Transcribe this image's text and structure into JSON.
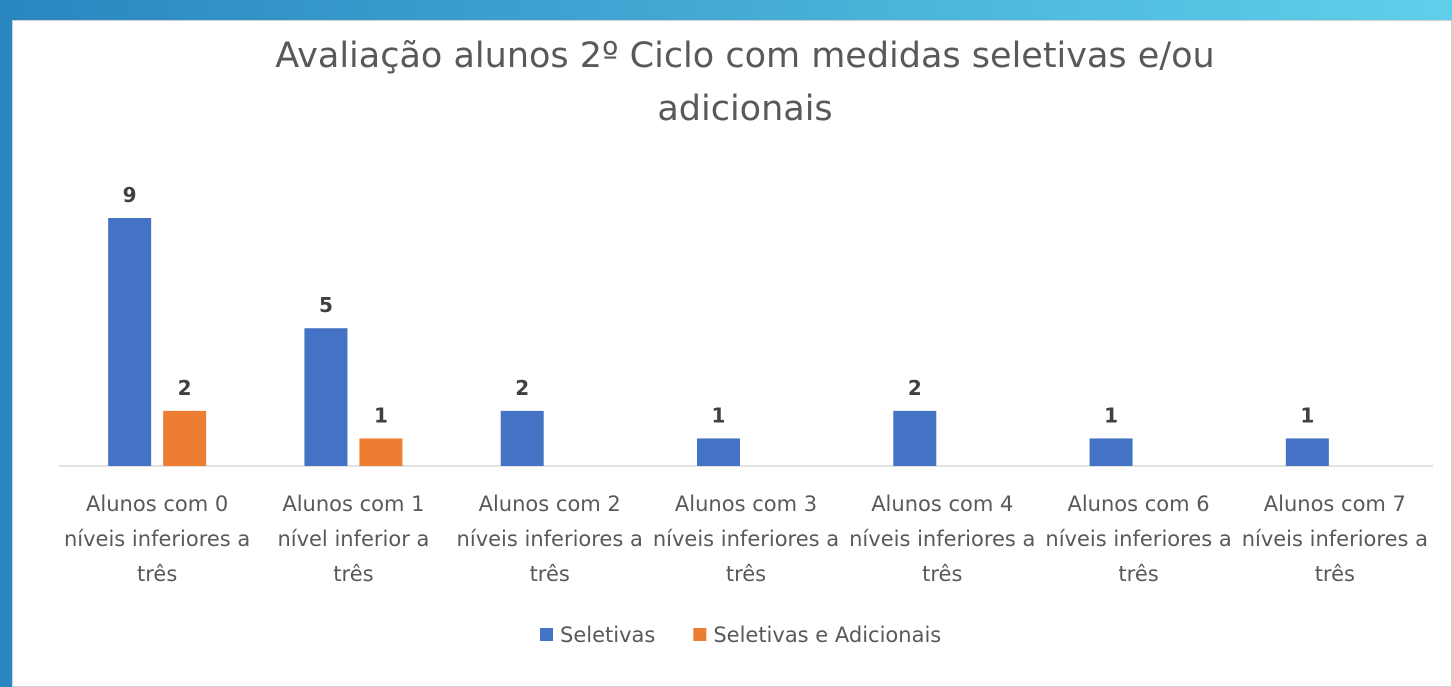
{
  "chart_data": {
    "type": "bar",
    "title": "Avaliação alunos 2º Ciclo com medidas seletivas e/ou adicionais",
    "categories": [
      "Alunos com 0 níveis inferiores a três",
      "Alunos com 1 nível inferior a três",
      "Alunos com 2 níveis inferiores a três",
      "Alunos com 3 níveis inferiores a três",
      "Alunos com 4 níveis inferiores a três",
      "Alunos com 6 níveis inferiores a três",
      "Alunos com 7 níveis inferiores a três"
    ],
    "series": [
      {
        "name": "Seletivas",
        "color": "#4472c4",
        "values": [
          9,
          5,
          2,
          1,
          2,
          1,
          1
        ]
      },
      {
        "name": "Seletivas e Adicionais",
        "color": "#ed7d31",
        "values": [
          2,
          1,
          null,
          null,
          null,
          null,
          null
        ]
      }
    ],
    "legend": "bottom"
  }
}
